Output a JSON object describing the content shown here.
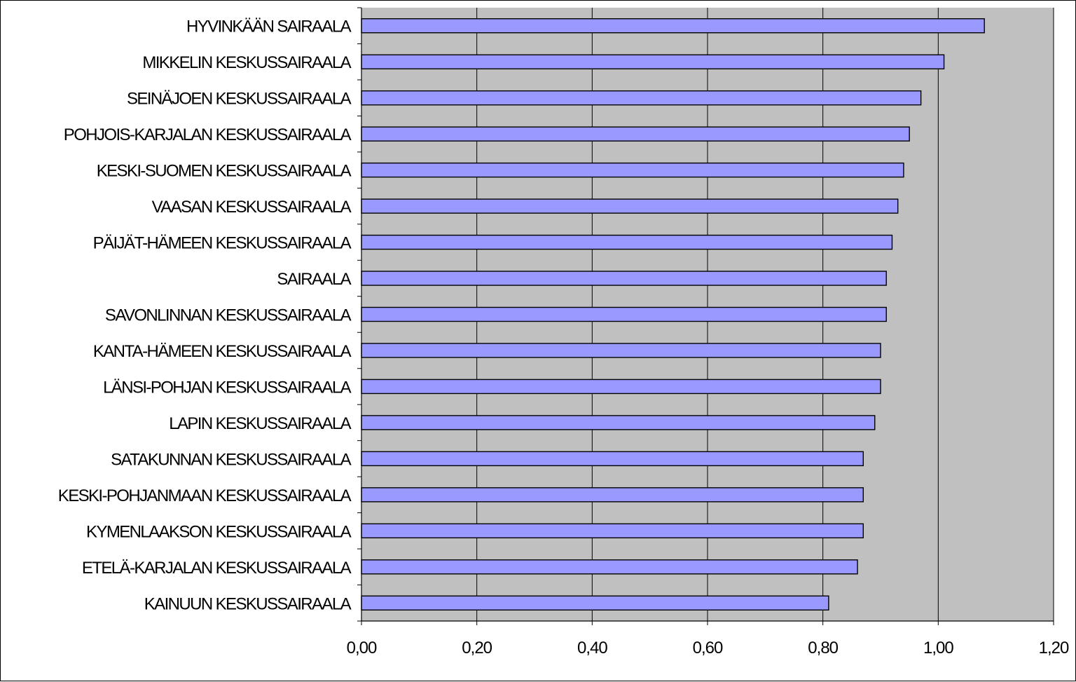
{
  "chart_data": {
    "type": "bar",
    "orientation": "horizontal",
    "categories": [
      "HYVINKÄÄN SAIRAALA",
      "MIKKELIN KESKUSSAIRAALA",
      "SEINÄJOEN KESKUSSAIRAALA",
      "POHJOIS-KARJALAN KESKUSSAIRAALA",
      "KESKI-SUOMEN KESKUSSAIRAALA",
      "VAASAN KESKUSSAIRAALA",
      "PÄIJÄT-HÄMEEN KESKUSSAIRAALA",
      "SAIRAALA",
      "SAVONLINNAN KESKUSSAIRAALA",
      "KANTA-HÄMEEN KESKUSSAIRAALA",
      "LÄNSI-POHJAN KESKUSSAIRAALA",
      "LAPIN KESKUSSAIRAALA",
      "SATAKUNNAN KESKUSSAIRAALA",
      "KESKI-POHJANMAAN KESKUSSAIRAALA",
      "KYMENLAAKSON KESKUSSAIRAALA",
      "ETELÄ-KARJALAN KESKUSSAIRAALA",
      "KAINUUN KESKUSSAIRAALA"
    ],
    "values": [
      1.08,
      1.01,
      0.97,
      0.95,
      0.94,
      0.93,
      0.92,
      0.91,
      0.91,
      0.9,
      0.9,
      0.89,
      0.87,
      0.87,
      0.87,
      0.86,
      0.81
    ],
    "xlim": [
      0,
      1.2
    ],
    "xticks": [
      "0,00",
      "0,20",
      "0,40",
      "0,60",
      "0,80",
      "1,00",
      "1,20"
    ],
    "xtick_values": [
      0,
      0.2,
      0.4,
      0.6,
      0.8,
      1.0,
      1.2
    ],
    "title": "",
    "xlabel": "",
    "ylabel": "",
    "grid": "vertical",
    "legend": "none",
    "colors": {
      "bar_fill": "#9999ff",
      "bar_stroke": "#000000",
      "plot_background": "#c0c0c0",
      "gridline": "#000000"
    }
  }
}
